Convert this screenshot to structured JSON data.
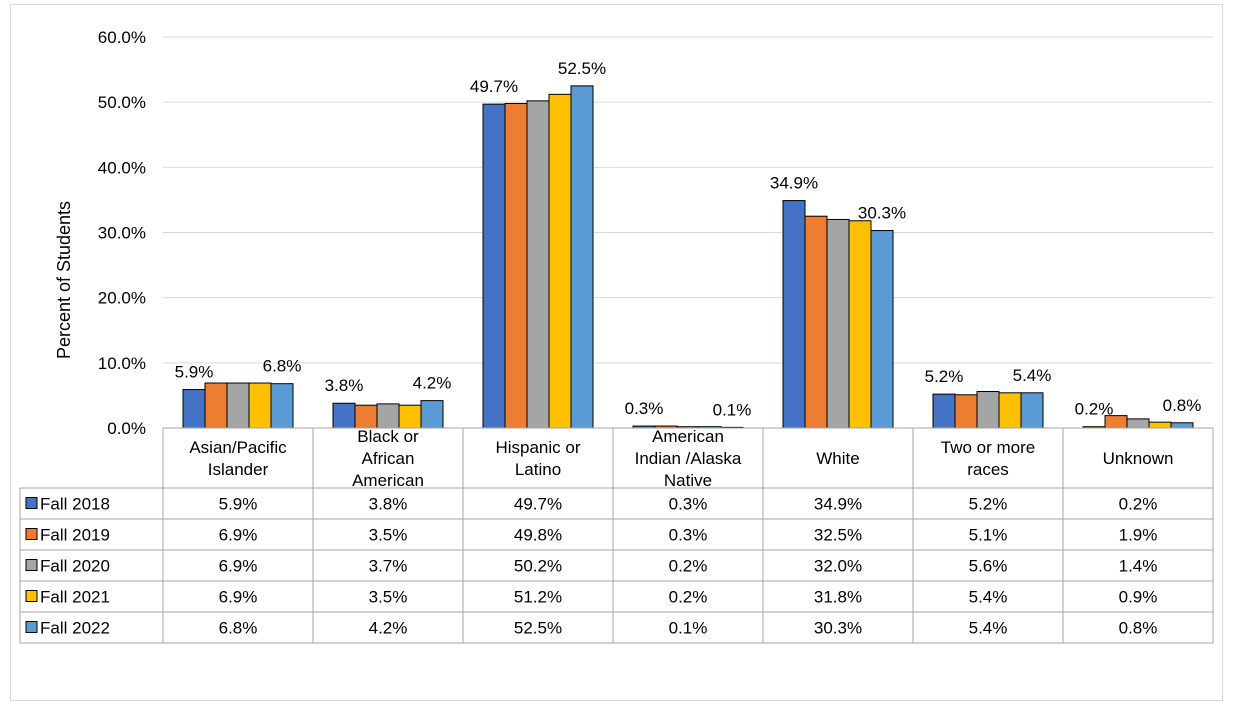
{
  "chart_data": {
    "type": "bar",
    "ylabel": "Percent of Students",
    "ylim": [
      0,
      60
    ],
    "yticks": [
      "0.0%",
      "10.0%",
      "20.0%",
      "30.0%",
      "40.0%",
      "50.0%",
      "60.0%"
    ],
    "grid": true,
    "legend": "data-table",
    "categories": [
      [
        "Asian/Pacific",
        "Islander"
      ],
      [
        "Black or",
        "African",
        "American"
      ],
      [
        "Hispanic or",
        "Latino"
      ],
      [
        "American",
        "Indian /Alaska",
        "Native"
      ],
      [
        "White"
      ],
      [
        "Two or more",
        "races"
      ],
      [
        "Unknown"
      ]
    ],
    "series": [
      {
        "name": "Fall 2018",
        "color": "#4472C4",
        "values": [
          5.9,
          3.8,
          49.7,
          0.3,
          34.9,
          5.2,
          0.2
        ],
        "cells": [
          "5.9%",
          "3.8%",
          "49.7%",
          "0.3%",
          "34.9%",
          "5.2%",
          "0.2%"
        ]
      },
      {
        "name": "Fall 2019",
        "color": "#ED7D31",
        "values": [
          6.9,
          3.5,
          49.8,
          0.3,
          32.5,
          5.1,
          1.9
        ],
        "cells": [
          "6.9%",
          "3.5%",
          "49.8%",
          "0.3%",
          "32.5%",
          "5.1%",
          "1.9%"
        ]
      },
      {
        "name": "Fall 2020",
        "color": "#A5A5A5",
        "values": [
          6.9,
          3.7,
          50.2,
          0.2,
          32.0,
          5.6,
          1.4
        ],
        "cells": [
          "6.9%",
          "3.7%",
          "50.2%",
          "0.2%",
          "32.0%",
          "5.6%",
          "1.4%"
        ]
      },
      {
        "name": "Fall 2021",
        "color": "#FFC000",
        "values": [
          6.9,
          3.5,
          51.2,
          0.2,
          31.8,
          5.4,
          0.9
        ],
        "cells": [
          "6.9%",
          "3.5%",
          "51.2%",
          "0.2%",
          "31.8%",
          "5.4%",
          "0.9%"
        ]
      },
      {
        "name": "Fall 2022",
        "color": "#5B9BD5",
        "values": [
          6.8,
          4.2,
          52.5,
          0.1,
          30.3,
          5.4,
          0.8
        ],
        "cells": [
          "6.8%",
          "4.2%",
          "52.5%",
          "0.1%",
          "30.3%",
          "5.4%",
          "0.8%"
        ]
      }
    ],
    "data_labels": [
      {
        "series": 0,
        "category": 0,
        "text": "5.9%"
      },
      {
        "series": 4,
        "category": 0,
        "text": "6.8%"
      },
      {
        "series": 0,
        "category": 1,
        "text": "3.8%"
      },
      {
        "series": 4,
        "category": 1,
        "text": "4.2%"
      },
      {
        "series": 0,
        "category": 2,
        "text": "49.7%"
      },
      {
        "series": 4,
        "category": 2,
        "text": "52.5%"
      },
      {
        "series": 0,
        "category": 3,
        "text": "0.3%"
      },
      {
        "series": 4,
        "category": 3,
        "text": "0.1%"
      },
      {
        "series": 0,
        "category": 4,
        "text": "34.9%"
      },
      {
        "series": 4,
        "category": 4,
        "text": "30.3%"
      },
      {
        "series": 0,
        "category": 5,
        "text": "5.2%"
      },
      {
        "series": 4,
        "category": 5,
        "text": "5.4%"
      },
      {
        "series": 0,
        "category": 6,
        "text": "0.2%"
      },
      {
        "series": 4,
        "category": 6,
        "text": "0.8%"
      }
    ]
  }
}
